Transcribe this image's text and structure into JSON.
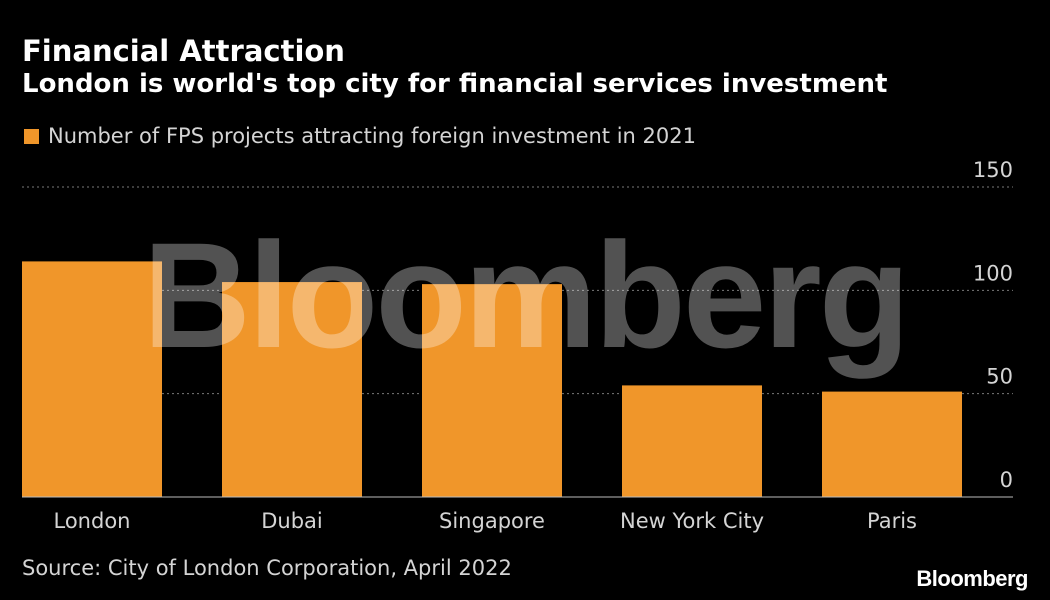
{
  "title": "Financial Attraction",
  "subtitle": "London is world's top city for financial services investment",
  "source": "Source: City of London Corporation, April 2022",
  "brand": "Bloomberg",
  "watermark": "Bloomberg",
  "colors": {
    "background": "#000000",
    "bar": "#f0962a",
    "gridline": "#7a7a7a",
    "text": "#ffffff",
    "muted_text": "#d4d4d4"
  },
  "chart_data": {
    "type": "bar",
    "categories": [
      "London",
      "Dubai",
      "Singapore",
      "New York City",
      "Paris"
    ],
    "series": [
      {
        "name": "Number of FPS projects attracting foreign investment in 2021",
        "values": [
          114,
          104,
          103,
          54,
          51
        ]
      }
    ],
    "yticks": [
      0,
      50,
      100,
      150
    ],
    "ylim": [
      0,
      150
    ],
    "y_axis_side": "right",
    "grid": true,
    "legend_position": "top-left",
    "xlabel": "",
    "ylabel": ""
  }
}
